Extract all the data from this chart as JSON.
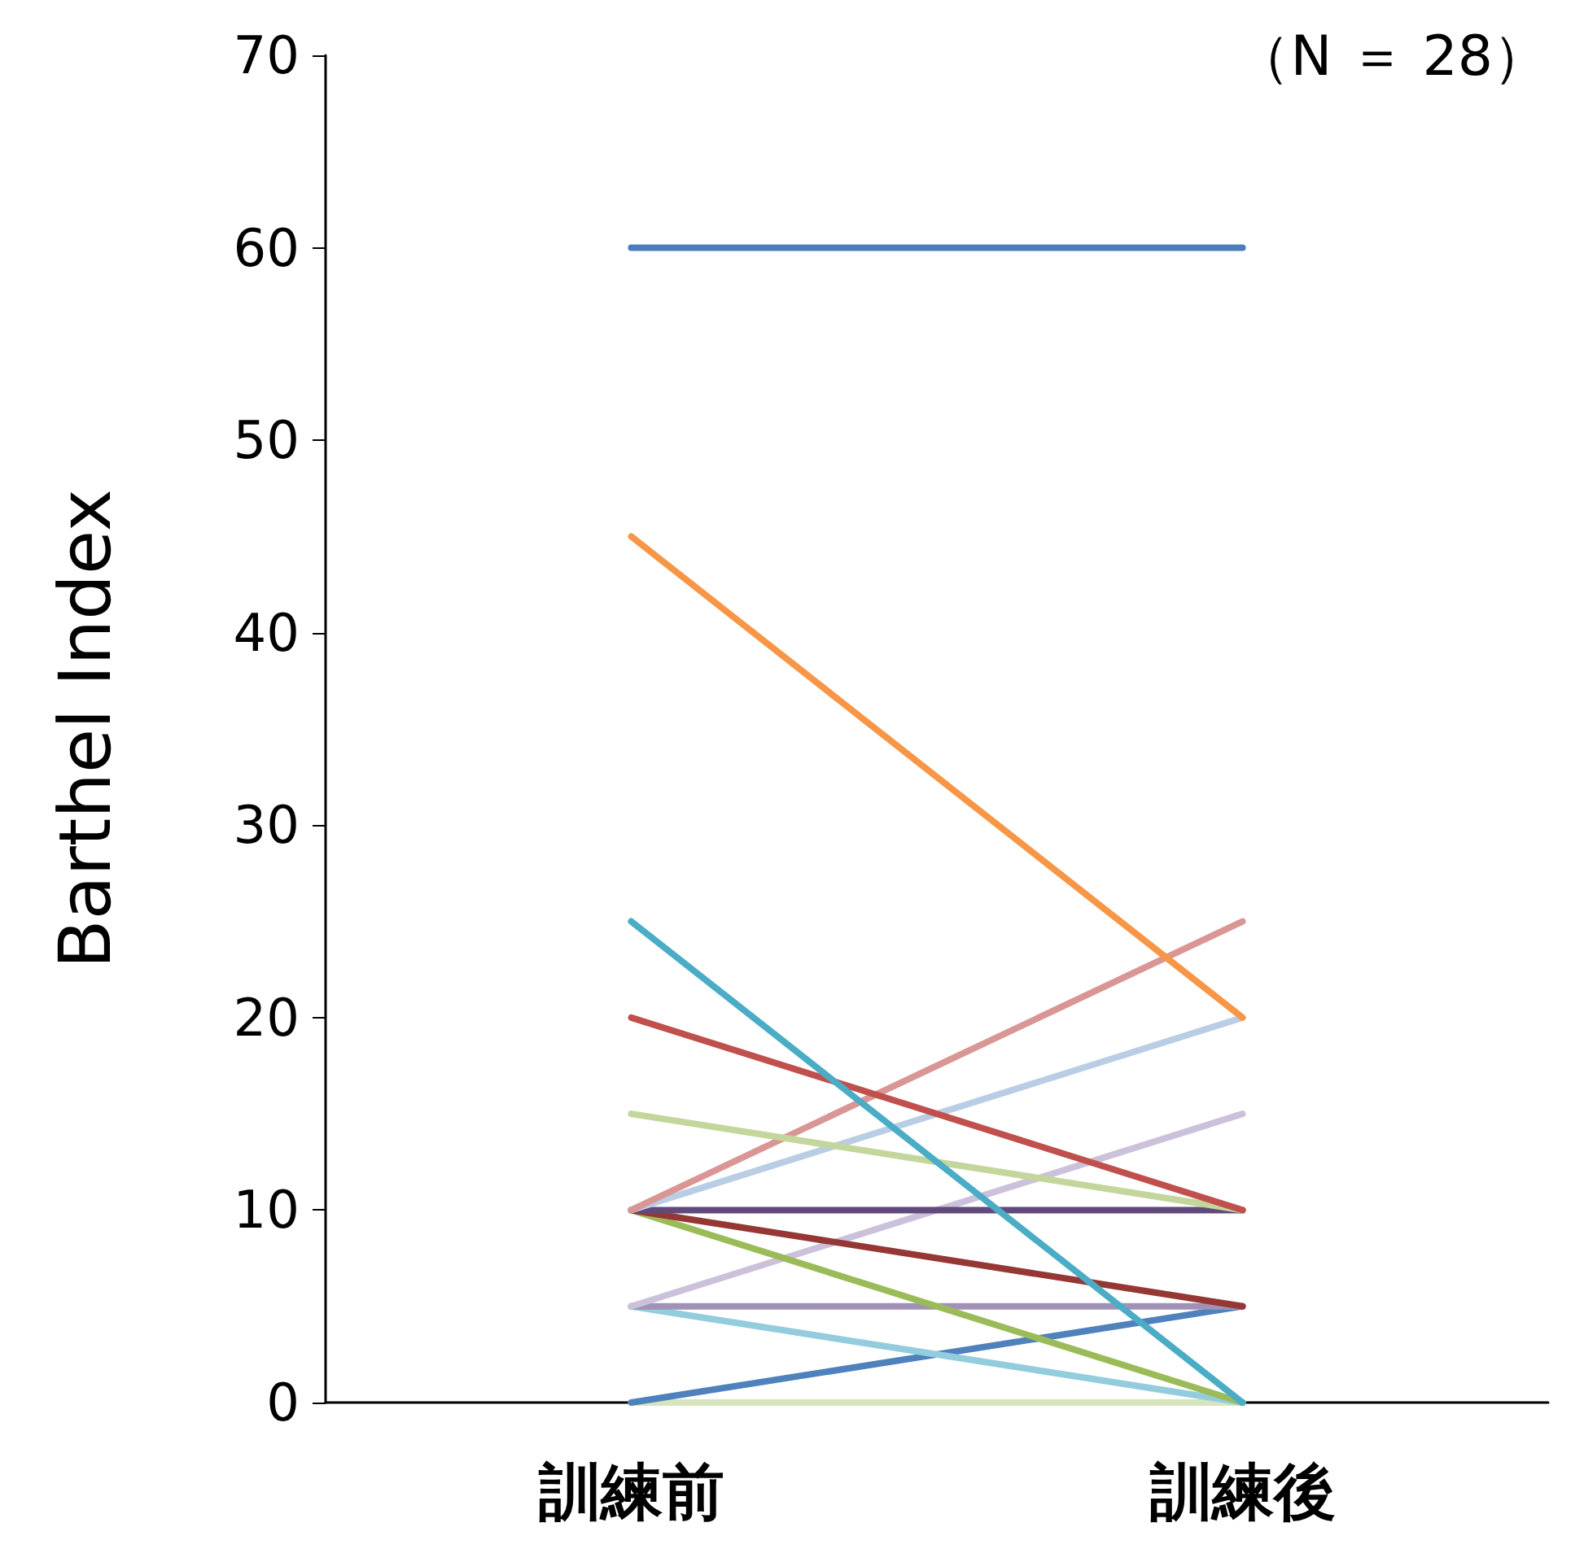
{
  "chart_data": {
    "type": "line",
    "ylabel": "Barthel Index",
    "annotations": [
      "（N ＝ 28）"
    ],
    "categories": [
      "訓練前",
      "訓練後"
    ],
    "ylim": [
      0,
      70
    ],
    "yticks": [
      0,
      10,
      20,
      30,
      40,
      50,
      60,
      70
    ],
    "grid": false,
    "marker": "none",
    "line_style": "solid",
    "series": [
      {
        "color": "#d7e4bd",
        "values": [
          0,
          0
        ]
      },
      {
        "color": "#4f81bd",
        "values": [
          0,
          5
        ]
      },
      {
        "color": "#93cddd",
        "values": [
          5,
          0
        ]
      },
      {
        "color": "#a092b7",
        "values": [
          5,
          5
        ]
      },
      {
        "color": "#ccc1da",
        "values": [
          5,
          15
        ]
      },
      {
        "color": "#9bbb59",
        "values": [
          10,
          0
        ]
      },
      {
        "color": "#953735",
        "values": [
          10,
          5
        ]
      },
      {
        "color": "#604a7b",
        "values": [
          10,
          10
        ]
      },
      {
        "color": "#b9cde5",
        "values": [
          10,
          20
        ]
      },
      {
        "color": "#d99694",
        "values": [
          10,
          25
        ]
      },
      {
        "color": "#c3d69b",
        "values": [
          15,
          10
        ]
      },
      {
        "color": "#c0504d",
        "values": [
          20,
          10
        ]
      },
      {
        "color": "#4bacc6",
        "values": [
          25,
          0
        ]
      },
      {
        "color": "#f79646",
        "values": [
          45,
          20
        ]
      },
      {
        "color": "#4a7ebb",
        "values": [
          60,
          60
        ]
      }
    ]
  }
}
